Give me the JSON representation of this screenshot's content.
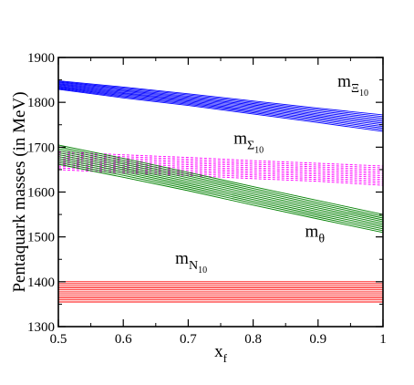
{
  "chart_data": {
    "type": "area",
    "title": "",
    "xlabel": {
      "main": "x",
      "sub": "f"
    },
    "ylabel": "Pentaquark masses (in MeV)",
    "xlim": [
      0.5,
      1.0
    ],
    "ylim": [
      1300,
      1900
    ],
    "xticks": [
      "0.5",
      "0.6",
      "0.7",
      "0.8",
      "0.9",
      "1"
    ],
    "yticks": [
      "1300",
      "1400",
      "1500",
      "1600",
      "1700",
      "1800",
      "1900"
    ],
    "grid": false,
    "legend": "none",
    "x": [
      0.5,
      0.6,
      0.7,
      0.8,
      0.9,
      1.0
    ],
    "series": [
      {
        "color": "#0000ff",
        "line_style": "solid",
        "upper": [
          1848,
          1834,
          1819,
          1803,
          1787,
          1772
        ],
        "lower": [
          1829,
          1810,
          1793,
          1774,
          1755,
          1735
        ]
      },
      {
        "color": "#ff00ff",
        "line_style": "dashed",
        "upper": [
          1690,
          1683,
          1677,
          1670,
          1664,
          1658
        ],
        "lower": [
          1650,
          1643,
          1637,
          1630,
          1624,
          1615
        ]
      },
      {
        "color": "#008000",
        "line_style": "solid",
        "upper": [
          1705,
          1675,
          1644,
          1612,
          1581,
          1550
        ],
        "lower": [
          1662,
          1633,
          1603,
          1571,
          1540,
          1510
        ]
      },
      {
        "color": "#ff0000",
        "line_style": "solid",
        "upper": [
          1400,
          1400,
          1400,
          1400,
          1400,
          1400
        ],
        "lower": [
          1355,
          1355,
          1355,
          1355,
          1355,
          1355
        ]
      }
    ],
    "annotations": [
      {
        "main": "m",
        "sub": "Ξ",
        "sub2": "10",
        "x": 0.93,
        "y": 1835
      },
      {
        "main": "m",
        "sub": "Σ",
        "sub2": "10",
        "x": 0.77,
        "y": 1708
      },
      {
        "main": "m",
        "sub": "θ",
        "sub2": "",
        "x": 0.88,
        "y": 1500
      },
      {
        "main": "m",
        "sub": "N",
        "sub2": "10",
        "x": 0.68,
        "y": 1440
      }
    ]
  }
}
